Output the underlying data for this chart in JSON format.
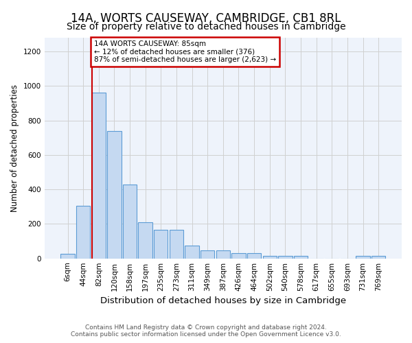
{
  "title": "14A, WORTS CAUSEWAY, CAMBRIDGE, CB1 8RL",
  "subtitle": "Size of property relative to detached houses in Cambridge",
  "xlabel": "Distribution of detached houses by size in Cambridge",
  "ylabel": "Number of detached properties",
  "footer_line1": "Contains HM Land Registry data © Crown copyright and database right 2024.",
  "footer_line2": "Contains public sector information licensed under the Open Government Licence v3.0.",
  "bin_labels": [
    "6sqm",
    "44sqm",
    "82sqm",
    "120sqm",
    "158sqm",
    "197sqm",
    "235sqm",
    "273sqm",
    "311sqm",
    "349sqm",
    "387sqm",
    "426sqm",
    "464sqm",
    "502sqm",
    "540sqm",
    "578sqm",
    "617sqm",
    "655sqm",
    "693sqm",
    "731sqm",
    "769sqm"
  ],
  "bar_values": [
    25,
    305,
    960,
    740,
    430,
    210,
    165,
    165,
    75,
    48,
    48,
    30,
    30,
    15,
    15,
    15,
    0,
    0,
    0,
    15,
    15
  ],
  "bar_color": "#c5d9f1",
  "bar_edge_color": "#5b9bd5",
  "grid_color": "#d0d0d0",
  "annotation_text": "14A WORTS CAUSEWAY: 85sqm\n← 12% of detached houses are smaller (376)\n87% of semi-detached houses are larger (2,623) →",
  "annotation_box_color": "#ffffff",
  "annotation_box_edge_color": "#cc0000",
  "vline_x_index": 2,
  "vline_color": "#cc0000",
  "ylim": [
    0,
    1280
  ],
  "yticks": [
    0,
    200,
    400,
    600,
    800,
    1000,
    1200
  ],
  "background_color": "#ffffff",
  "plot_bg_color": "#eef3fb",
  "title_fontsize": 12,
  "subtitle_fontsize": 10,
  "ylabel_fontsize": 8.5,
  "xlabel_fontsize": 9.5,
  "tick_fontsize": 7.5,
  "footer_fontsize": 6.5
}
